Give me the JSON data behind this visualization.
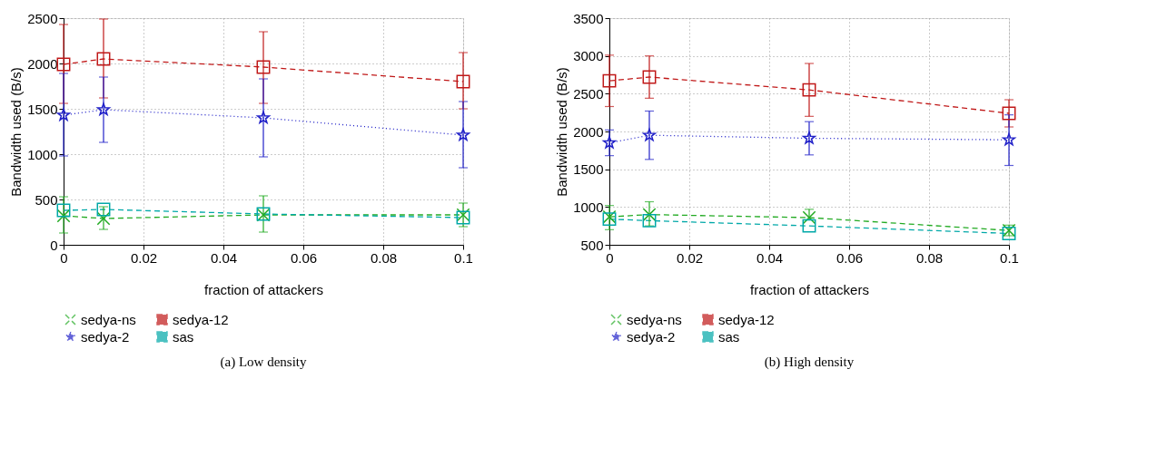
{
  "chart_data": [
    {
      "type": "line",
      "title": "(a) Low density",
      "xlabel": "fraction of attackers",
      "ylabel": "Bandwidth used (B/s)",
      "x": [
        0,
        0.01,
        0.05,
        0.1
      ],
      "xlim": [
        0,
        0.1
      ],
      "xticks": [
        0,
        0.02,
        0.04,
        0.06,
        0.08,
        0.1
      ],
      "ylim": [
        0,
        2500
      ],
      "yticks": [
        0,
        500,
        1000,
        1500,
        2000,
        2500
      ],
      "grid": true,
      "legend": "bottom",
      "series": [
        {
          "name": "sedya-ns",
          "color": "#22aa22",
          "marker": "cross",
          "line_style": "dashed",
          "values": [
            320,
            290,
            330,
            330
          ],
          "errors": [
            [
              130,
              530
            ],
            [
              170,
              420
            ],
            [
              140,
              540
            ],
            [
              200,
              460
            ]
          ]
        },
        {
          "name": "sedya-12",
          "color": "#c01818",
          "marker": "square",
          "line_style": "dashed",
          "values": [
            1990,
            2050,
            1960,
            1800
          ],
          "errors": [
            [
              1560,
              2430
            ],
            [
              1620,
              2490
            ],
            [
              1560,
              2350
            ],
            [
              1500,
              2120
            ]
          ]
        },
        {
          "name": "sedya-2",
          "color": "#2020c8",
          "marker": "star",
          "line_style": "dotted",
          "values": [
            1430,
            1490,
            1400,
            1210
          ],
          "errors": [
            [
              980,
              1890
            ],
            [
              1130,
              1850
            ],
            [
              970,
              1830
            ],
            [
              850,
              1580
            ]
          ]
        },
        {
          "name": "sas",
          "color": "#00a8a8",
          "marker": "square",
          "line_style": "dashed",
          "values": [
            380,
            390,
            340,
            300
          ],
          "errors": [
            null,
            null,
            null,
            null
          ]
        }
      ]
    },
    {
      "type": "line",
      "title": "(b) High density",
      "xlabel": "fraction of attackers",
      "ylabel": "Bandwidth used (B/s)",
      "x": [
        0,
        0.01,
        0.05,
        0.1
      ],
      "xlim": [
        0,
        0.1
      ],
      "xticks": [
        0,
        0.02,
        0.04,
        0.06,
        0.08,
        0.1
      ],
      "ylim": [
        500,
        3500
      ],
      "yticks": [
        500,
        1000,
        1500,
        2000,
        2500,
        3000,
        3500
      ],
      "grid": true,
      "legend": "bottom",
      "series": [
        {
          "name": "sedya-ns",
          "color": "#22aa22",
          "marker": "cross",
          "line_style": "dashed",
          "values": [
            870,
            900,
            860,
            690
          ],
          "errors": [
            [
              700,
              1020
            ],
            [
              750,
              1070
            ],
            [
              830,
              970
            ],
            [
              620,
              760
            ]
          ]
        },
        {
          "name": "sedya-12",
          "color": "#c01818",
          "marker": "square",
          "line_style": "dashed",
          "values": [
            2670,
            2720,
            2550,
            2240
          ],
          "errors": [
            [
              2330,
              3010
            ],
            [
              2440,
              3000
            ],
            [
              2200,
              2900
            ],
            [
              2060,
              2420
            ]
          ]
        },
        {
          "name": "sedya-2",
          "color": "#2020c8",
          "marker": "star",
          "line_style": "dotted",
          "values": [
            1850,
            1950,
            1910,
            1890
          ],
          "errors": [
            [
              1680,
              2020
            ],
            [
              1630,
              2270
            ],
            [
              1690,
              2130
            ],
            [
              1550,
              2220
            ]
          ]
        },
        {
          "name": "sas",
          "color": "#00a8a8",
          "marker": "square",
          "line_style": "dashed",
          "values": [
            840,
            820,
            750,
            650
          ],
          "errors": [
            null,
            null,
            null,
            null
          ]
        }
      ]
    }
  ]
}
